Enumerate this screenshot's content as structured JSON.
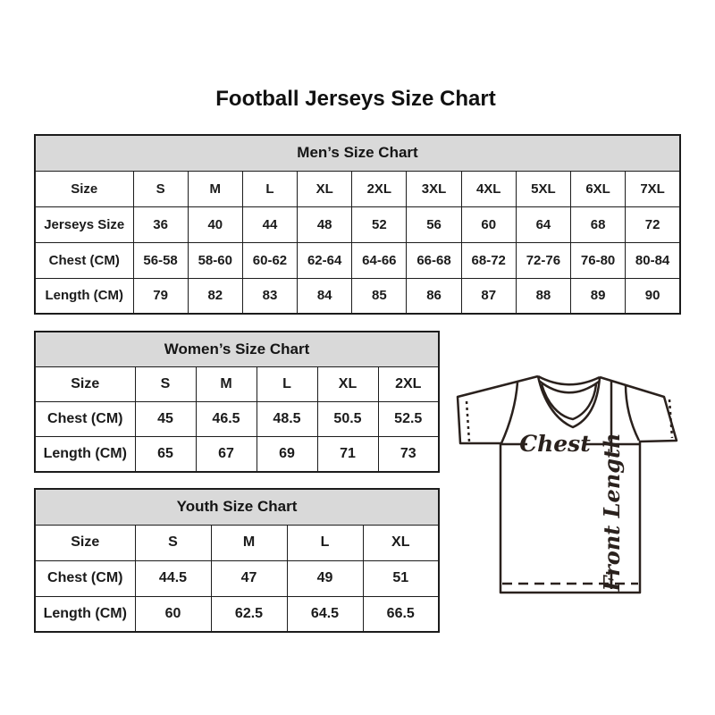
{
  "page_title": "Football Jerseys Size Chart",
  "tables": [
    {
      "title": "Men’s Size Chart",
      "rows": [
        [
          "Size",
          "S",
          "M",
          "L",
          "XL",
          "2XL",
          "3XL",
          "4XL",
          "5XL",
          "6XL",
          "7XL"
        ],
        [
          "Jerseys Size",
          "36",
          "40",
          "44",
          "48",
          "52",
          "56",
          "60",
          "64",
          "68",
          "72"
        ],
        [
          "Chest (CM)",
          "56-58",
          "58-60",
          "60-62",
          "62-64",
          "64-66",
          "66-68",
          "68-72",
          "72-76",
          "76-80",
          "80-84"
        ],
        [
          "Length (CM)",
          "79",
          "82",
          "83",
          "84",
          "85",
          "86",
          "87",
          "88",
          "89",
          "90"
        ]
      ]
    },
    {
      "title": "Women’s Size Chart",
      "rows": [
        [
          "Size",
          "S",
          "M",
          "L",
          "XL",
          "2XL"
        ],
        [
          "Chest (CM)",
          "45",
          "46.5",
          "48.5",
          "50.5",
          "52.5"
        ],
        [
          "Length (CM)",
          "65",
          "67",
          "69",
          "71",
          "73"
        ]
      ]
    },
    {
      "title": "Youth Size Chart",
      "rows": [
        [
          "Size",
          "S",
          "M",
          "L",
          "XL"
        ],
        [
          "Chest (CM)",
          "44.5",
          "47",
          "49",
          "51"
        ],
        [
          "Length (CM)",
          "60",
          "62.5",
          "64.5",
          "66.5"
        ]
      ]
    }
  ],
  "diagram": {
    "chest_label": "Chest",
    "front_length_label": "Front Length"
  },
  "colors": {
    "table_header_bg": "#d9d9d9",
    "table_border": "#1c1c1c",
    "text": "#1b1b1b",
    "diagram_line": "#2a211d"
  }
}
